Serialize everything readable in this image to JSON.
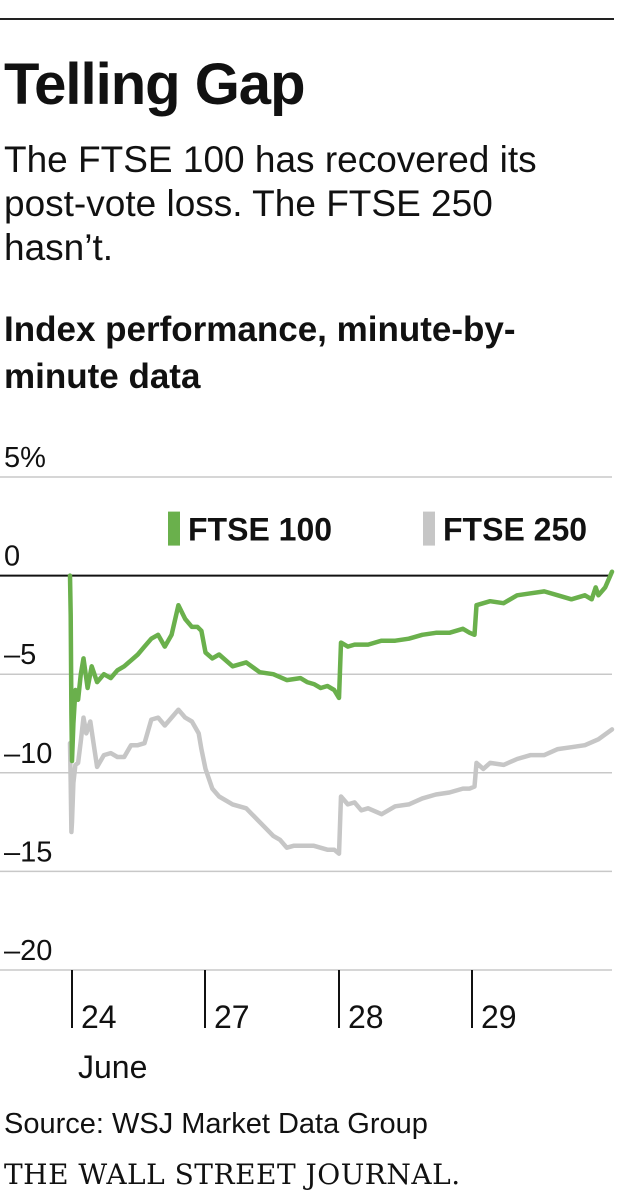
{
  "header": {
    "title": "Telling Gap",
    "subtitle": "The FTSE 100 has recovered its post-vote loss. The FTSE 250 hasn’t.",
    "chart_title": "Index performance, minute-by-minute data"
  },
  "footer": {
    "source": "Source: WSJ Market Data Group",
    "brand": "THE WALL STREET JOURNAL."
  },
  "colors": {
    "ftse100": "#6ab04c",
    "ftse250": "#c6c6c6",
    "grid": "#c8c8c8",
    "zero_line": "#111111",
    "text": "#111111"
  },
  "chart_data": {
    "type": "line",
    "title": "Index performance, minute-by-minute data",
    "xlabel": "",
    "ylabel": "",
    "ylim": [
      -20,
      5
    ],
    "yticks": [
      5,
      0,
      -5,
      -10,
      -15,
      -20
    ],
    "ytick_labels": [
      "5%",
      "0",
      "–5",
      "–10",
      "–15",
      "–20"
    ],
    "x_range": [
      0,
      4
    ],
    "xticks": [
      0,
      1,
      2,
      3
    ],
    "xtick_labels": [
      "24",
      "27",
      "28",
      "29"
    ],
    "x_sublabel": "June",
    "legend_position": "top-right",
    "series": [
      {
        "name": "FTSE 100",
        "color": "#6ab04c",
        "x": [
          0.0,
          0.005,
          0.01,
          0.015,
          0.025,
          0.04,
          0.06,
          0.08,
          0.1,
          0.13,
          0.16,
          0.2,
          0.25,
          0.3,
          0.35,
          0.4,
          0.45,
          0.5,
          0.55,
          0.6,
          0.65,
          0.7,
          0.75,
          0.8,
          0.85,
          0.9,
          0.94,
          0.97,
          1.0,
          1.05,
          1.1,
          1.2,
          1.3,
          1.4,
          1.5,
          1.6,
          1.7,
          1.75,
          1.8,
          1.85,
          1.9,
          1.95,
          1.985,
          2.0,
          2.05,
          2.1,
          2.2,
          2.3,
          2.4,
          2.5,
          2.6,
          2.7,
          2.8,
          2.9,
          2.95,
          2.985,
          3.0,
          3.05,
          3.1,
          3.2,
          3.3,
          3.4,
          3.5,
          3.6,
          3.7,
          3.8,
          3.85,
          3.88,
          3.9,
          3.95,
          4.0
        ],
        "values": [
          0.0,
          -2.0,
          -7.0,
          -9.4,
          -7.5,
          -5.8,
          -6.3,
          -5.0,
          -4.2,
          -5.7,
          -4.6,
          -5.4,
          -5.0,
          -5.2,
          -4.8,
          -4.6,
          -4.3,
          -4.0,
          -3.6,
          -3.2,
          -3.0,
          -3.6,
          -3.0,
          -1.5,
          -2.2,
          -2.6,
          -2.6,
          -2.8,
          -3.9,
          -4.2,
          -4.0,
          -4.6,
          -4.4,
          -4.9,
          -5.0,
          -5.3,
          -5.2,
          -5.4,
          -5.5,
          -5.7,
          -5.6,
          -5.8,
          -6.2,
          -3.4,
          -3.6,
          -3.5,
          -3.5,
          -3.3,
          -3.3,
          -3.2,
          -3.0,
          -2.9,
          -2.9,
          -2.7,
          -2.9,
          -3.0,
          -1.5,
          -1.4,
          -1.3,
          -1.4,
          -1.0,
          -0.9,
          -0.8,
          -1.0,
          -1.2,
          -1.0,
          -1.2,
          -0.6,
          -1.0,
          -0.6,
          0.2
        ]
      },
      {
        "name": "FTSE 250",
        "color": "#c6c6c6",
        "x": [
          0.0,
          0.005,
          0.01,
          0.015,
          0.025,
          0.04,
          0.06,
          0.08,
          0.1,
          0.12,
          0.15,
          0.18,
          0.2,
          0.25,
          0.3,
          0.35,
          0.4,
          0.45,
          0.5,
          0.55,
          0.6,
          0.65,
          0.7,
          0.75,
          0.8,
          0.85,
          0.9,
          0.95,
          0.97,
          1.0,
          1.05,
          1.1,
          1.2,
          1.3,
          1.4,
          1.5,
          1.55,
          1.6,
          1.65,
          1.7,
          1.8,
          1.9,
          1.95,
          1.985,
          2.0,
          2.05,
          2.1,
          2.15,
          2.2,
          2.3,
          2.4,
          2.5,
          2.6,
          2.7,
          2.8,
          2.9,
          2.95,
          2.985,
          3.0,
          3.05,
          3.1,
          3.2,
          3.3,
          3.4,
          3.5,
          3.6,
          3.7,
          3.8,
          3.9,
          4.0
        ],
        "values": [
          -8.5,
          -10.5,
          -13.0,
          -12.5,
          -10.5,
          -9.6,
          -9.5,
          -8.4,
          -7.2,
          -8.0,
          -7.4,
          -8.8,
          -9.7,
          -9.1,
          -9.0,
          -9.2,
          -9.2,
          -8.6,
          -8.6,
          -8.5,
          -7.3,
          -7.2,
          -7.6,
          -7.2,
          -6.8,
          -7.2,
          -7.4,
          -8.0,
          -8.8,
          -9.8,
          -10.8,
          -11.2,
          -11.6,
          -11.8,
          -12.5,
          -13.2,
          -13.4,
          -13.8,
          -13.7,
          -13.7,
          -13.7,
          -13.9,
          -13.9,
          -14.1,
          -11.2,
          -11.6,
          -11.5,
          -11.9,
          -11.8,
          -12.1,
          -11.7,
          -11.6,
          -11.3,
          -11.1,
          -11.0,
          -10.8,
          -10.8,
          -10.7,
          -9.5,
          -9.8,
          -9.5,
          -9.6,
          -9.3,
          -9.1,
          -9.1,
          -8.8,
          -8.7,
          -8.6,
          -8.3,
          -7.8
        ]
      }
    ]
  }
}
